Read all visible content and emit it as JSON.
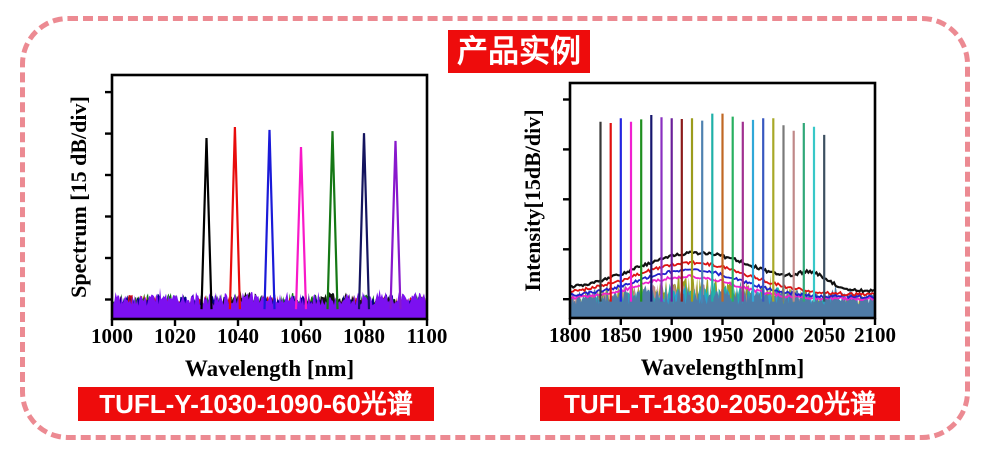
{
  "title": {
    "text": "产品实例",
    "bg": "#ee0c0c",
    "fg": "#ffffff"
  },
  "captions": {
    "left": "TUFL-Y-1030-1090-60光谱",
    "right": "TUFL-T-1830-2050-20光谱",
    "bg": "#ee0c0c",
    "fg": "#ffffff"
  },
  "border_color": "#ec8a92",
  "chart_data": [
    {
      "type": "line",
      "title": "TUFL-Y-1030-1090-60 tunable laser spectra",
      "xlabel": "Wavelength [nm]",
      "ylabel": "Spectrum [15 dB/div]",
      "xlim": [
        1000,
        1100
      ],
      "xticks": [
        1000,
        1020,
        1040,
        1060,
        1080,
        1100
      ],
      "yticks_count": 6,
      "grid": false,
      "legend": "none",
      "peaks": [
        {
          "x": 1030,
          "h": 0.742,
          "color": "#000000"
        },
        {
          "x": 1039,
          "h": 0.787,
          "color": "#e80c0c"
        },
        {
          "x": 1050,
          "h": 0.775,
          "color": "#1a1ad8"
        },
        {
          "x": 1060,
          "h": 0.705,
          "color": "#f818c8"
        },
        {
          "x": 1070,
          "h": 0.77,
          "color": "#157815"
        },
        {
          "x": 1080,
          "h": 0.762,
          "color": "#14145f"
        },
        {
          "x": 1090,
          "h": 0.73,
          "color": "#8818cc"
        }
      ],
      "noise_layers": [
        {
          "color": "#157815",
          "base": 0.107,
          "rough": 0.6
        },
        {
          "color": "#cc1010",
          "base": 0.1,
          "rough": 0.62
        },
        {
          "color": "#00008b",
          "base": 0.104,
          "rough": 0.62
        },
        {
          "color": "#111111",
          "base": 0.055,
          "rough": 0.45,
          "bumps": [
            {
              "c": 1041,
              "s": 5,
              "a": 0.075
            },
            {
              "c": 1070,
              "s": 6,
              "a": 0.07
            },
            {
              "c": 1087,
              "s": 4,
              "a": 0.045
            }
          ]
        },
        {
          "color": "#7c10f0",
          "base": 0.112,
          "rough": 0.52,
          "spike": 1.2
        }
      ]
    },
    {
      "type": "line",
      "title": "TUFL-T-1830-2050-20 tunable laser spectra",
      "xlabel": "Wavelength[nm]",
      "ylabel": "Intensity[15dB/div]",
      "xlim": [
        1800,
        2100
      ],
      "xticks": [
        1800,
        1850,
        1900,
        1950,
        2000,
        2050,
        2100
      ],
      "yticks_count": 5,
      "grid": false,
      "legend": "none",
      "comb": {
        "start": 1830,
        "step": 10,
        "count": 23,
        "heights": [
          0.835,
          0.83,
          0.85,
          0.835,
          0.845,
          0.864,
          0.854,
          0.85,
          0.847,
          0.85,
          0.84,
          0.87,
          0.87,
          0.857,
          0.835,
          0.843,
          0.85,
          0.85,
          0.82,
          0.797,
          0.83,
          0.814,
          0.779
        ],
        "colors": [
          "#383838",
          "#e01010",
          "#2424e0",
          "#f020d0",
          "#1f8f1f",
          "#16166e",
          "#8a30c0",
          "#6a1f9a",
          "#8b1a1a",
          "#9c9c1c",
          "#4f81b0",
          "#1fb0a8",
          "#c06824",
          "#28b060",
          "#a03090",
          "#30a8d8",
          "#3858c0",
          "#a8a828",
          "#7a7a7a",
          "#c08888",
          "#30a878",
          "#38c8c8",
          "#3c4f60"
        ]
      },
      "envelopes": [
        {
          "color": "#111111",
          "floor": 0.112,
          "width": 2.2,
          "comps": [
            {
              "c": 1925,
              "s": 60,
              "a": 0.165
            },
            {
              "c": 2038,
              "s": 15,
              "a": 0.055
            }
          ]
        },
        {
          "color": "#dd1111",
          "floor": 0.1,
          "width": 1.8,
          "comps": [
            {
              "c": 1920,
              "s": 55,
              "a": 0.135
            }
          ]
        },
        {
          "color": "#2020cc",
          "floor": 0.09,
          "width": 1.8,
          "comps": [
            {
              "c": 1918,
              "s": 50,
              "a": 0.115
            }
          ]
        },
        {
          "color": "#ee22cc",
          "floor": 0.082,
          "width": 1.8,
          "comps": [
            {
              "c": 1916,
              "s": 47,
              "a": 0.095
            }
          ]
        }
      ],
      "noise_layers": [
        {
          "color": "#9aa020",
          "base": 0.085,
          "rough": 0.75,
          "spike": 1.3,
          "bumps": [
            {
              "c": 1920,
              "s": 80,
              "a": 0.1
            }
          ]
        },
        {
          "color": "#c08888",
          "base": 0.08,
          "rough": 0.72,
          "bumps": [
            {
              "c": 1905,
              "s": 60,
              "a": 0.075
            }
          ]
        },
        {
          "color": "#20b2aa",
          "base": 0.082,
          "rough": 0.72,
          "bumps": [
            {
              "c": 1935,
              "s": 70,
              "a": 0.08
            }
          ]
        },
        {
          "color": "#2aa0d0",
          "base": 0.078,
          "rough": 0.72,
          "bumps": [
            {
              "c": 1950,
              "s": 60,
              "a": 0.06
            }
          ]
        },
        {
          "color": "#4f7ba6",
          "base": 0.125,
          "rough": 0.55,
          "spike": 1.25
        }
      ]
    }
  ]
}
